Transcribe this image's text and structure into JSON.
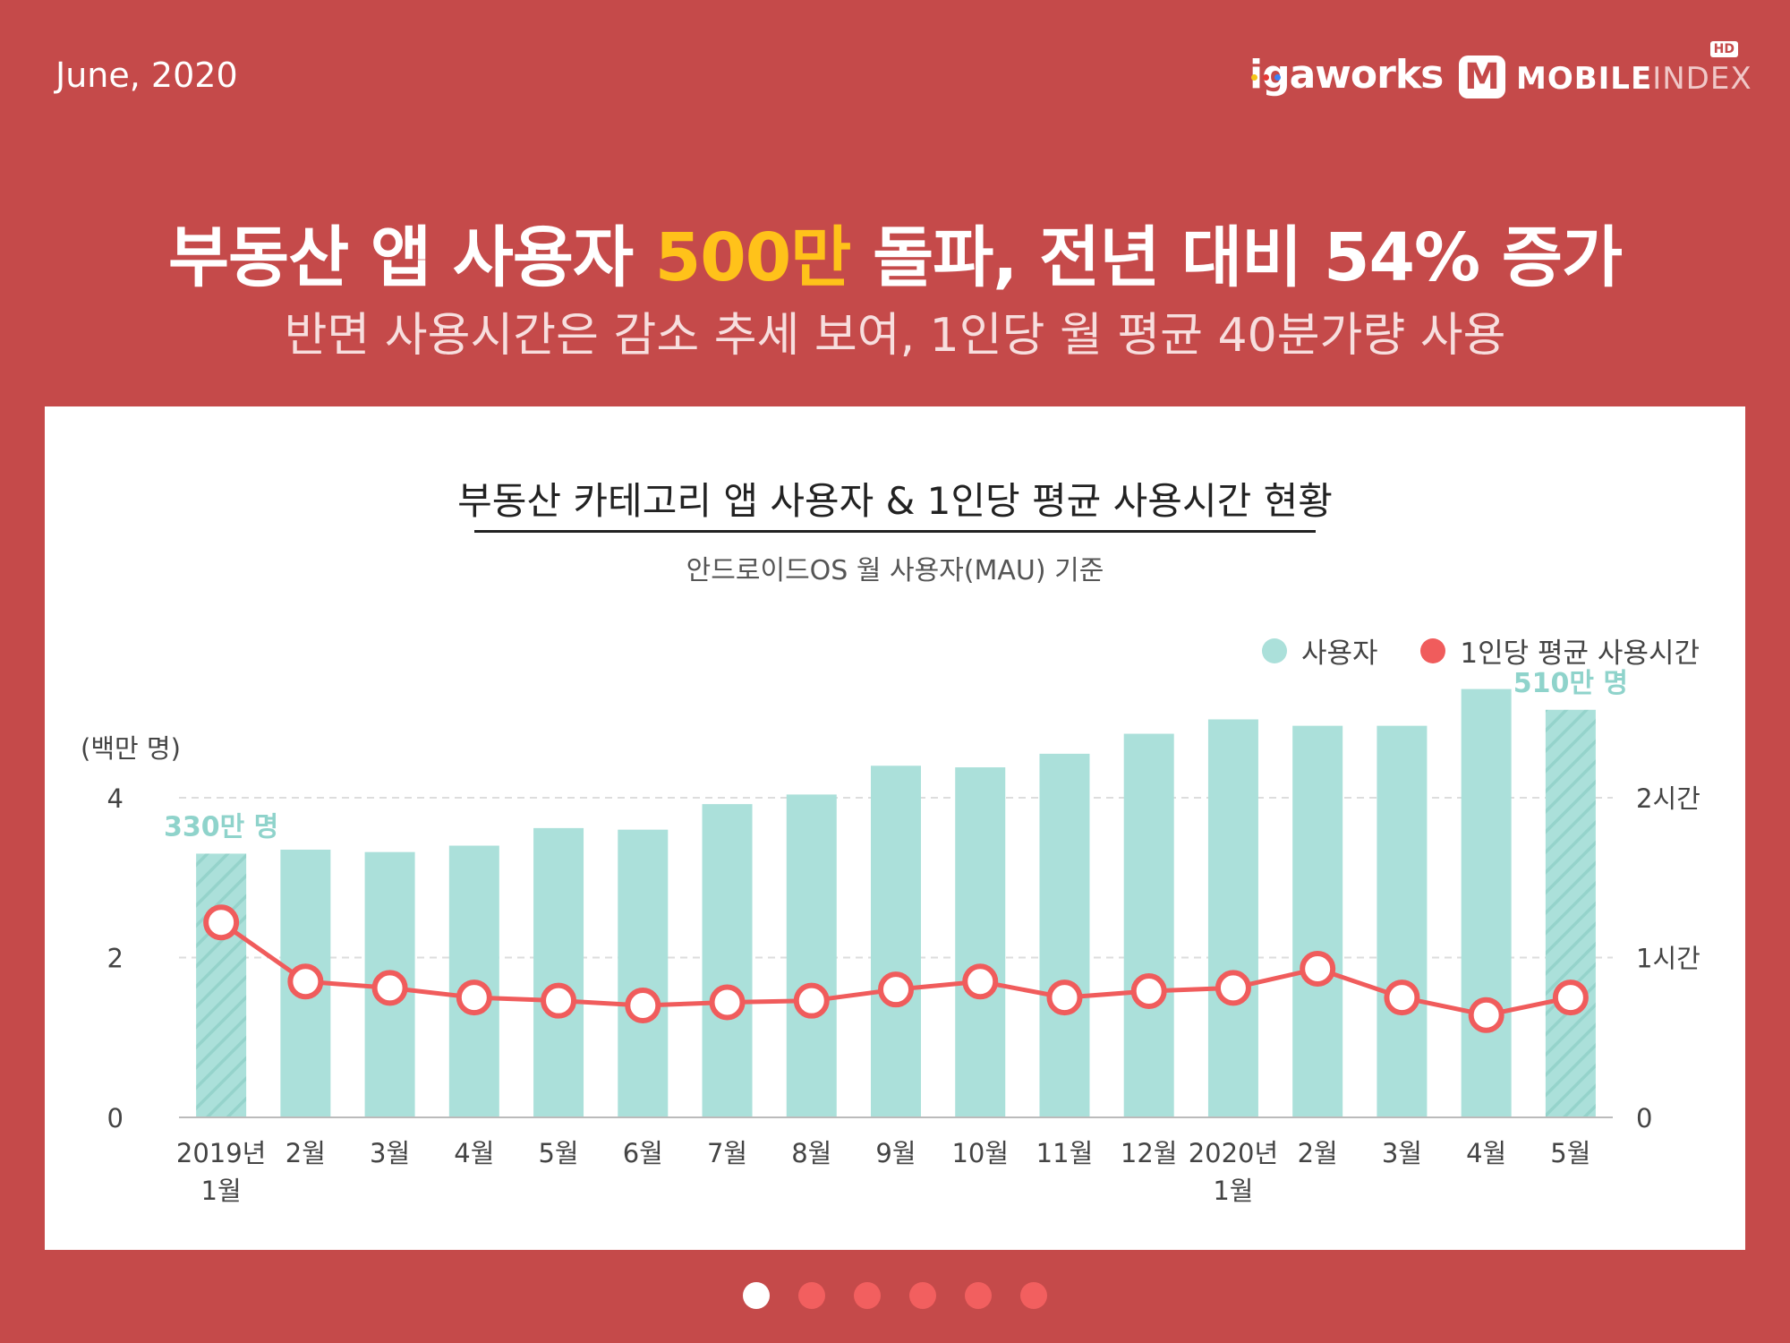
{
  "header": {
    "date": "June, 2020",
    "brand_igaworks": "igaworks",
    "brand_mobileindex_bold": "MOBILE",
    "brand_mobileindex_light": "INDEX",
    "brand_mobileindex_badge": "HD",
    "brand_mobileindex_mark": "M"
  },
  "headline": {
    "part1": "부동산 앱 사용자 ",
    "highlight": "500만",
    "part2": " 돌파, 전년 대비 54% 증가",
    "highlight_color": "#ffc21a"
  },
  "subheadline": "반면 사용시간은 감소 추세 보여, 1인당 월 평균 40분가량 사용",
  "chart_data": {
    "type": "bar",
    "title": "부동산 카테고리 앱 사용자 & 1인당 평균 사용시간 현황",
    "subtitle": "안드로이드OS 월 사용자(MAU) 기준",
    "legend": [
      "사용자",
      "1인당 평균 사용시간"
    ],
    "legend_position": "top-right",
    "ylabel": "(백만 명)",
    "ylim": [
      0,
      5.4
    ],
    "yticks": [
      0,
      2,
      4
    ],
    "y2ticks": [
      "0",
      "1시간",
      "2시간"
    ],
    "y2ticks_hours": [
      0,
      1,
      2
    ],
    "y2lim_hours": [
      0,
      2.7
    ],
    "grid": true,
    "categories": [
      "2019년\n1월",
      "2월",
      "3월",
      "4월",
      "5월",
      "6월",
      "7월",
      "8월",
      "9월",
      "10월",
      "11월",
      "12월",
      "2020년\n1월",
      "2월",
      "3월",
      "4월",
      "5월"
    ],
    "series": [
      {
        "name": "사용자",
        "kind": "bar",
        "axis": "left",
        "color": "#abe0da",
        "values": [
          3.3,
          3.35,
          3.32,
          3.4,
          3.62,
          3.6,
          3.92,
          4.04,
          4.4,
          4.38,
          4.55,
          4.8,
          4.98,
          4.9,
          4.9,
          5.36,
          5.1
        ],
        "hatched_indices": [
          0,
          16
        ]
      },
      {
        "name": "1인당 평균 사용시간",
        "kind": "line",
        "axis": "right",
        "color": "#f05c5c",
        "values_hours": [
          1.22,
          0.85,
          0.81,
          0.75,
          0.73,
          0.7,
          0.72,
          0.73,
          0.8,
          0.85,
          0.75,
          0.79,
          0.81,
          0.93,
          0.75,
          0.64,
          0.75
        ]
      }
    ],
    "annotations": [
      {
        "text": "330만 명",
        "index": 0
      },
      {
        "text": "510만 명",
        "index": 16
      }
    ],
    "annotation_color": "#8fd3cb",
    "axis_text_color": "#444"
  },
  "pagination": {
    "count": 6,
    "active_index": 0
  }
}
